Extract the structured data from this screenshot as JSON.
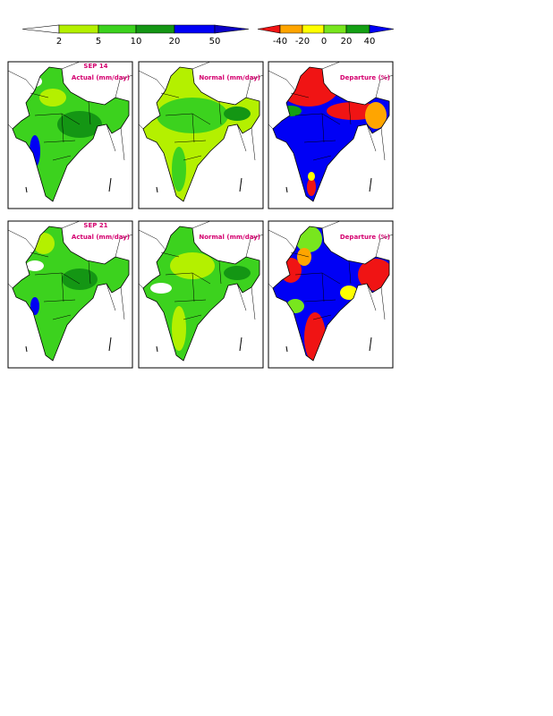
{
  "colorbars": [
    {
      "labels": [
        "2",
        "5",
        "10",
        "20",
        "50"
      ],
      "colors": [
        "#ffffff",
        "#b4f000",
        "#3cd21e",
        "#149614",
        "#0000f5",
        "#0a00c8"
      ]
    },
    {
      "labels": [
        "-40",
        "-20",
        "0",
        "20",
        "40"
      ],
      "colors": [
        "#f01414",
        "#ffa500",
        "#ffff00",
        "#78e61e",
        "#14a014",
        "#0000f5"
      ]
    }
  ],
  "rows": [
    {
      "date": "SEP 14",
      "titles": [
        "Actual (mm/day)",
        "Normal (mm/day)",
        "Departure (%)"
      ]
    },
    {
      "date": "SEP 21",
      "titles": [
        "Actual (mm/day)",
        "Normal (mm/day)",
        "Departure (%)"
      ]
    }
  ]
}
